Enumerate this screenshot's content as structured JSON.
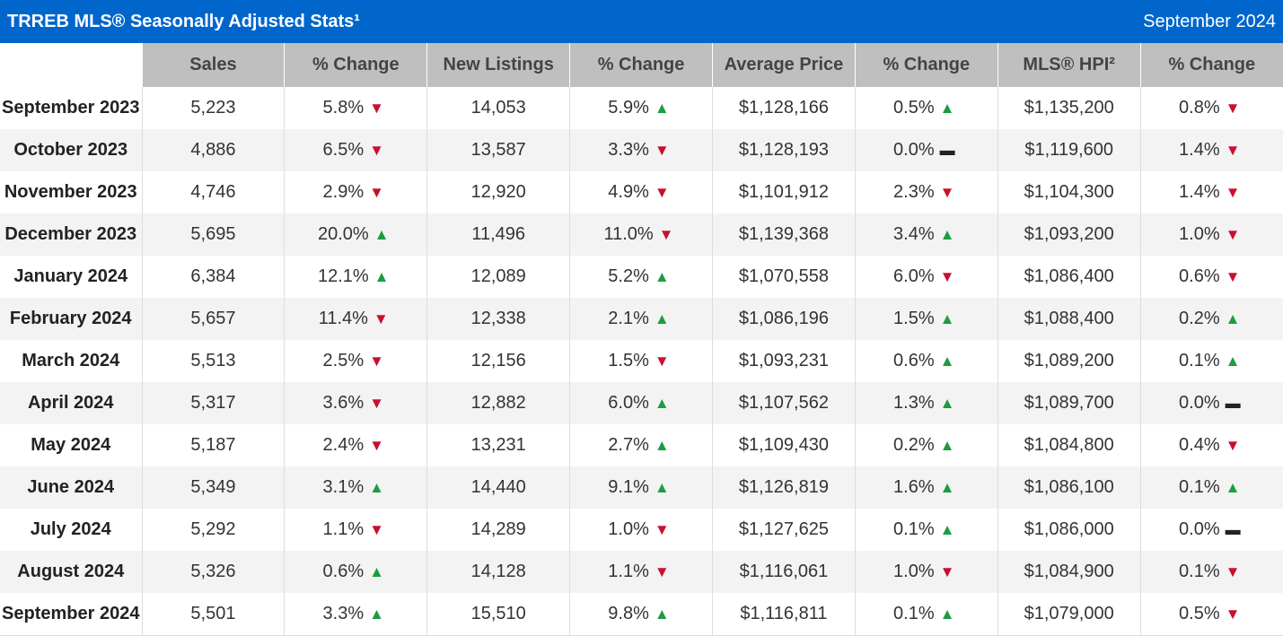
{
  "header": {
    "title": "TRREB MLS® Seasonally Adjusted Stats¹",
    "date": "September 2024"
  },
  "table": {
    "columns": [
      "",
      "Sales",
      "% Change",
      "New Listings",
      "% Change",
      "Average Price",
      "% Change",
      "MLS® HPI²",
      "% Change"
    ],
    "rows": [
      [
        "September 2023",
        "5,223",
        [
          "5.8%",
          "▼"
        ],
        "14,053",
        [
          "5.9%",
          "▲"
        ],
        "$1,128,166",
        [
          "0.5%",
          "▲"
        ],
        "$1,135,200",
        [
          "0.8%",
          "▼"
        ]
      ],
      [
        "October 2023",
        "4,886",
        [
          "6.5%",
          "▼"
        ],
        "13,587",
        [
          "3.3%",
          "▼"
        ],
        "$1,128,193",
        [
          "0.0%",
          "▬"
        ],
        "$1,119,600",
        [
          "1.4%",
          "▼"
        ]
      ],
      [
        "November 2023",
        "4,746",
        [
          "2.9%",
          "▼"
        ],
        "12,920",
        [
          "4.9%",
          "▼"
        ],
        "$1,101,912",
        [
          "2.3%",
          "▼"
        ],
        "$1,104,300",
        [
          "1.4%",
          "▼"
        ]
      ],
      [
        "December 2023",
        "5,695",
        [
          "20.0%",
          "▲"
        ],
        "11,496",
        [
          "11.0%",
          "▼"
        ],
        "$1,139,368",
        [
          "3.4%",
          "▲"
        ],
        "$1,093,200",
        [
          "1.0%",
          "▼"
        ]
      ],
      [
        "January 2024",
        "6,384",
        [
          "12.1%",
          "▲"
        ],
        "12,089",
        [
          "5.2%",
          "▲"
        ],
        "$1,070,558",
        [
          "6.0%",
          "▼"
        ],
        "$1,086,400",
        [
          "0.6%",
          "▼"
        ]
      ],
      [
        "February 2024",
        "5,657",
        [
          "11.4%",
          "▼"
        ],
        "12,338",
        [
          "2.1%",
          "▲"
        ],
        "$1,086,196",
        [
          "1.5%",
          "▲"
        ],
        "$1,088,400",
        [
          "0.2%",
          "▲"
        ]
      ],
      [
        "March 2024",
        "5,513",
        [
          "2.5%",
          "▼"
        ],
        "12,156",
        [
          "1.5%",
          "▼"
        ],
        "$1,093,231",
        [
          "0.6%",
          "▲"
        ],
        "$1,089,200",
        [
          "0.1%",
          "▲"
        ]
      ],
      [
        "April 2024",
        "5,317",
        [
          "3.6%",
          "▼"
        ],
        "12,882",
        [
          "6.0%",
          "▲"
        ],
        "$1,107,562",
        [
          "1.3%",
          "▲"
        ],
        "$1,089,700",
        [
          "0.0%",
          "▬"
        ]
      ],
      [
        "May 2024",
        "5,187",
        [
          "2.4%",
          "▼"
        ],
        "13,231",
        [
          "2.7%",
          "▲"
        ],
        "$1,109,430",
        [
          "0.2%",
          "▲"
        ],
        "$1,084,800",
        [
          "0.4%",
          "▼"
        ]
      ],
      [
        "June 2024",
        "5,349",
        [
          "3.1%",
          "▲"
        ],
        "14,440",
        [
          "9.1%",
          "▲"
        ],
        "$1,126,819",
        [
          "1.6%",
          "▲"
        ],
        "$1,086,100",
        [
          "0.1%",
          "▲"
        ]
      ],
      [
        "July 2024",
        "5,292",
        [
          "1.1%",
          "▼"
        ],
        "14,289",
        [
          "1.0%",
          "▼"
        ],
        "$1,127,625",
        [
          "0.1%",
          "▲"
        ],
        "$1,086,000",
        [
          "0.0%",
          "▬"
        ]
      ],
      [
        "August 2024",
        "5,326",
        [
          "0.6%",
          "▲"
        ],
        "14,128",
        [
          "1.1%",
          "▼"
        ],
        "$1,116,061",
        [
          "1.0%",
          "▼"
        ],
        "$1,084,900",
        [
          "0.1%",
          "▼"
        ]
      ],
      [
        "September 2024",
        "5,501",
        [
          "3.3%",
          "▲"
        ],
        "15,510",
        [
          "9.8%",
          "▲"
        ],
        "$1,116,811",
        [
          "0.1%",
          "▲"
        ],
        "$1,079,000",
        [
          "0.5%",
          "▼"
        ]
      ]
    ]
  }
}
